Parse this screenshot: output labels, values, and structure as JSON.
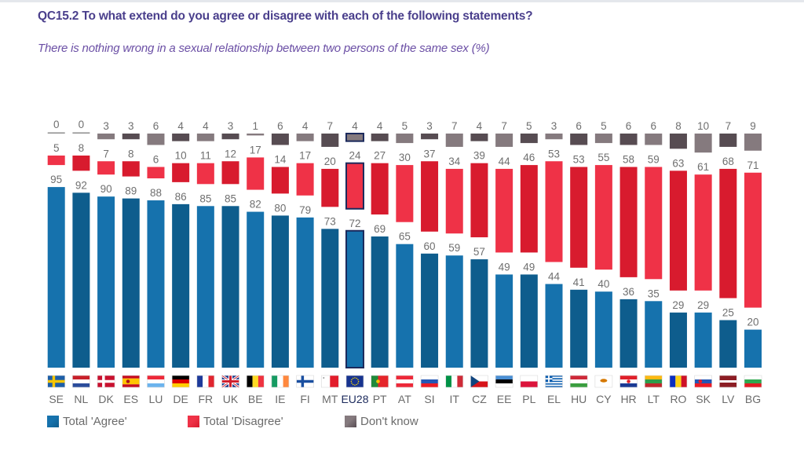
{
  "header": {
    "title": "QC15.2 To what extend do you agree or disagree with each of the following statements?",
    "subtitle": "There is nothing wrong in a sexual relationship between two persons of the same sex (%)"
  },
  "chart_data": {
    "type": "bar",
    "stacked": true,
    "title": "There is nothing wrong in a sexual relationship between two persons of the same sex (%)",
    "xlabel": "",
    "ylabel": "",
    "ylim": [
      0,
      100
    ],
    "grid": false,
    "legend": "bottom-left",
    "highlight_category": "EU28",
    "categories": [
      "SE",
      "NL",
      "DK",
      "ES",
      "LU",
      "DE",
      "FR",
      "UK",
      "BE",
      "IE",
      "FI",
      "MT",
      "EU28",
      "PT",
      "AT",
      "SI",
      "IT",
      "CZ",
      "EE",
      "PL",
      "EL",
      "HU",
      "CY",
      "HR",
      "LT",
      "RO",
      "SK",
      "LV",
      "BG"
    ],
    "series": [
      {
        "name": "Total 'Agree'",
        "colors": [
          "#1672ad",
          "#0e5d8d"
        ],
        "values": [
          95,
          92,
          90,
          89,
          88,
          86,
          85,
          85,
          82,
          80,
          79,
          73,
          72,
          69,
          65,
          60,
          59,
          57,
          49,
          49,
          44,
          41,
          40,
          36,
          35,
          29,
          29,
          25,
          20
        ]
      },
      {
        "name": "Total 'Disagree'",
        "colors": [
          "#ef3247",
          "#d81b2e"
        ],
        "values": [
          5,
          8,
          7,
          8,
          6,
          10,
          11,
          12,
          17,
          14,
          17,
          20,
          24,
          27,
          30,
          37,
          34,
          39,
          44,
          46,
          53,
          53,
          55,
          58,
          59,
          63,
          61,
          68,
          71
        ]
      },
      {
        "name": "Don't know",
        "colors": [
          "#857a7e",
          "#574c52"
        ],
        "values": [
          0,
          0,
          3,
          3,
          6,
          4,
          4,
          3,
          1,
          6,
          4,
          7,
          4,
          4,
          5,
          3,
          7,
          4,
          7,
          5,
          3,
          6,
          5,
          6,
          6,
          8,
          10,
          7,
          9
        ]
      }
    ]
  },
  "colors": {
    "highlight": "#1c2a5c",
    "zero_line": "#8d8d8d",
    "flag_border": "#d9d9d9"
  },
  "flags": {
    "SE": {
      "pattern": "nordic",
      "colors": [
        "#1d5ea8",
        "#f7c600"
      ]
    },
    "NL": {
      "pattern": "h",
      "colors": [
        "#c8202a",
        "#ffffff",
        "#2b4c9b"
      ]
    },
    "DK": {
      "pattern": "nordic",
      "colors": [
        "#c8102e",
        "#ffffff"
      ]
    },
    "ES": {
      "pattern": "h-wide-center",
      "colors": [
        "#c60b1e",
        "#ffc400",
        "#c60b1e"
      ],
      "emblem": {
        "color": "#ad1519",
        "at": "left"
      }
    },
    "LU": {
      "pattern": "h",
      "colors": [
        "#ed2939",
        "#ffffff",
        "#6cb4ee"
      ]
    },
    "DE": {
      "pattern": "h",
      "colors": [
        "#000000",
        "#dd0000",
        "#ffce00"
      ]
    },
    "FR": {
      "pattern": "v",
      "colors": [
        "#1d3a9a",
        "#ffffff",
        "#e1252f"
      ]
    },
    "UK": {
      "pattern": "union",
      "colors": [
        "#1e3a8a",
        "#ffffff",
        "#d0202e"
      ]
    },
    "BE": {
      "pattern": "v",
      "colors": [
        "#000000",
        "#fdda24",
        "#ef3340"
      ]
    },
    "IE": {
      "pattern": "v",
      "colors": [
        "#169b62",
        "#ffffff",
        "#ff883e"
      ]
    },
    "FI": {
      "pattern": "nordic",
      "colors": [
        "#ffffff",
        "#1a4fa0"
      ]
    },
    "MT": {
      "pattern": "v",
      "colors": [
        "#ffffff",
        "#e21d2c"
      ],
      "emblem": {
        "color": "#9a9a9a",
        "at": "corner"
      }
    },
    "EU28": {
      "pattern": "stars",
      "colors": [
        "#17338f",
        "#ffdd00"
      ]
    },
    "PT": {
      "pattern": "v-2-3",
      "colors": [
        "#1f8a3a",
        "#e5252a"
      ],
      "emblem": {
        "color": "#f5c400",
        "at": "boundary"
      }
    },
    "AT": {
      "pattern": "h",
      "colors": [
        "#ed2939",
        "#ffffff",
        "#ed2939"
      ]
    },
    "SI": {
      "pattern": "h",
      "colors": [
        "#ffffff",
        "#2457b5",
        "#ed1c24"
      ],
      "emblem": {
        "color": "#2457b5",
        "at": "left"
      }
    },
    "IT": {
      "pattern": "v",
      "colors": [
        "#009246",
        "#ffffff",
        "#ce2b37"
      ]
    },
    "CZ": {
      "pattern": "chevron",
      "colors": [
        "#ffffff",
        "#d7141a",
        "#11457e"
      ]
    },
    "EE": {
      "pattern": "h",
      "colors": [
        "#4a8fd4",
        "#000000",
        "#ffffff"
      ]
    },
    "PL": {
      "pattern": "h",
      "colors": [
        "#ffffff",
        "#dc143c"
      ]
    },
    "EL": {
      "pattern": "stripes-canton",
      "colors": [
        "#0d5eaf",
        "#ffffff"
      ]
    },
    "HU": {
      "pattern": "h",
      "colors": [
        "#ce2939",
        "#ffffff",
        "#3a9e3f"
      ]
    },
    "CY": {
      "pattern": "island",
      "colors": [
        "#ffffff",
        "#d57800"
      ]
    },
    "HR": {
      "pattern": "h",
      "colors": [
        "#e0202a",
        "#ffffff",
        "#1b3a94"
      ],
      "emblem": {
        "color": "#e0202a",
        "at": "center"
      }
    },
    "LT": {
      "pattern": "h",
      "colors": [
        "#fdb913",
        "#2e9d4a",
        "#c1272d"
      ]
    },
    "RO": {
      "pattern": "v",
      "colors": [
        "#0b2fc0",
        "#fcd116",
        "#ce1126"
      ]
    },
    "SK": {
      "pattern": "h",
      "colors": [
        "#ffffff",
        "#2457b5",
        "#ee1c25"
      ],
      "emblem": {
        "color": "#ee1c25",
        "at": "left"
      }
    },
    "LV": {
      "pattern": "h-narrow-center",
      "colors": [
        "#8c1d24",
        "#ffffff",
        "#8c1d24"
      ]
    },
    "BG": {
      "pattern": "h",
      "colors": [
        "#ffffff",
        "#2fa84f",
        "#e31b23"
      ]
    }
  }
}
